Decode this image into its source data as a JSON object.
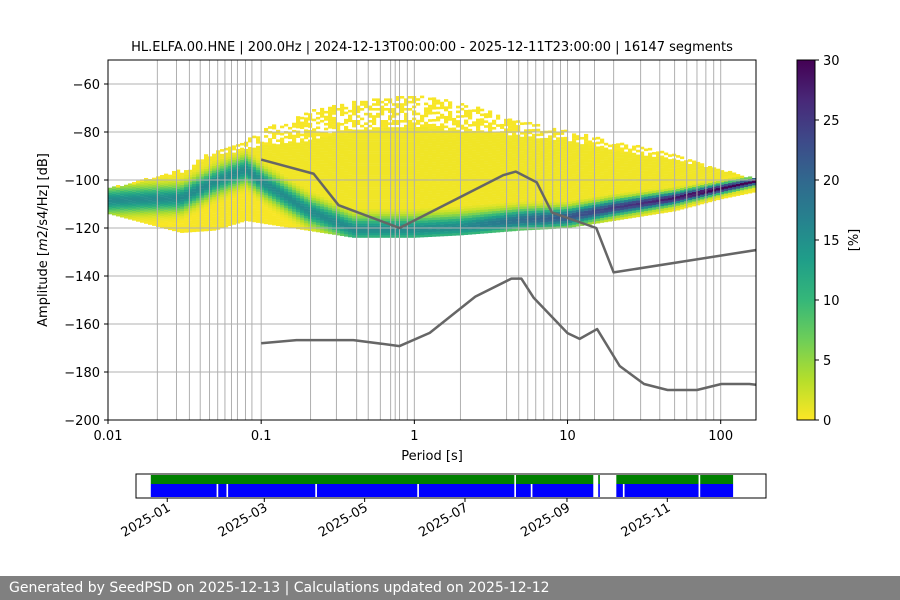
{
  "chart_data": [
    {
      "type": "heatmap",
      "title": "HL.ELFA.00.HNE | 200.0Hz | 2024-12-13T00:00:00 - 2025-12-11T23:00:00 | 16147 segments",
      "xlabel": "Period [s]",
      "ylabel_main": "Amplitude [",
      "ylabel_math": "m",
      "ylabel_units": "2/s4/Hz] [dB]",
      "x_scale": "log",
      "xlim": [
        0.01,
        170
      ],
      "ylim": [
        -200,
        -50
      ],
      "x_ticks": [
        {
          "value": 0.01,
          "label": "0.01"
        },
        {
          "value": 0.1,
          "label": "0.1"
        },
        {
          "value": 1,
          "label": "1"
        },
        {
          "value": 10,
          "label": "10"
        },
        {
          "value": 100,
          "label": "100"
        }
      ],
      "y_ticks": [
        {
          "value": -60,
          "label": "−60"
        },
        {
          "value": -80,
          "label": "−80"
        },
        {
          "value": -100,
          "label": "−100"
        },
        {
          "value": -120,
          "label": "−120"
        },
        {
          "value": -140,
          "label": "−140"
        },
        {
          "value": -160,
          "label": "−160"
        },
        {
          "value": -180,
          "label": "−180"
        },
        {
          "value": -200,
          "label": "−200"
        }
      ],
      "grid": true,
      "vertical_gridlines_periods": [
        0.021,
        0.028,
        0.034,
        0.04,
        0.046,
        0.052,
        0.058,
        0.064,
        0.07,
        0.079,
        0.087,
        0.1,
        0.21,
        0.31,
        0.42,
        0.5,
        0.6,
        0.7,
        0.75,
        0.8,
        0.9,
        1,
        2,
        4,
        4.8,
        5.5,
        6.2,
        7,
        8,
        9,
        10,
        12,
        15,
        20,
        30,
        40,
        50,
        60,
        70,
        80,
        90,
        100
      ],
      "high_noise_model": [
        {
          "x": 0.1,
          "y": -91.5
        },
        {
          "x": 0.22,
          "y": -97.4
        },
        {
          "x": 0.32,
          "y": -110.5
        },
        {
          "x": 0.8,
          "y": -120.0
        },
        {
          "x": 3.8,
          "y": -98.0
        },
        {
          "x": 4.6,
          "y": -96.5
        },
        {
          "x": 6.3,
          "y": -101.0
        },
        {
          "x": 7.9,
          "y": -113.5
        },
        {
          "x": 15.4,
          "y": -120.0
        },
        {
          "x": 20.0,
          "y": -138.5
        },
        {
          "x": 354.8,
          "y": -126.0
        }
      ],
      "low_noise_model": [
        {
          "x": 0.1,
          "y": -168.0
        },
        {
          "x": 0.17,
          "y": -166.7
        },
        {
          "x": 0.4,
          "y": -166.7
        },
        {
          "x": 0.8,
          "y": -169.2
        },
        {
          "x": 1.26,
          "y": -163.7
        },
        {
          "x": 2.5,
          "y": -148.6
        },
        {
          "x": 4.3,
          "y": -141.1
        },
        {
          "x": 5.0,
          "y": -141.1
        },
        {
          "x": 6.0,
          "y": -149.0
        },
        {
          "x": 10.0,
          "y": -163.8
        },
        {
          "x": 12.0,
          "y": -166.2
        },
        {
          "x": 15.6,
          "y": -162.1
        },
        {
          "x": 21.9,
          "y": -177.5
        },
        {
          "x": 31.6,
          "y": -185.0
        },
        {
          "x": 45.0,
          "y": -187.5
        },
        {
          "x": 70.0,
          "y": -187.5
        },
        {
          "x": 101.0,
          "y": -185.0
        },
        {
          "x": 154.0,
          "y": -185.0
        },
        {
          "x": 328.0,
          "y": -187.5
        }
      ],
      "density_band": {
        "description_points_period": [
          0.01,
          0.03,
          0.05,
          0.08,
          0.1,
          0.2,
          0.4,
          1,
          2,
          5,
          10,
          20,
          50,
          100,
          170
        ],
        "mode_db": [
          -109,
          -108,
          -101,
          -96,
          -101,
          -113,
          -121,
          -121,
          -120,
          -117,
          -116,
          -112,
          -108,
          -104,
          -101
        ],
        "lower_db": [
          -114,
          -122,
          -121,
          -117,
          -118,
          -121,
          -124,
          -124,
          -123,
          -121,
          -120,
          -117,
          -113,
          -108,
          -105
        ],
        "upper_db": [
          -104,
          -98,
          -90,
          -88,
          -86,
          -84,
          -80,
          -78,
          -80,
          -82,
          -84,
          -88,
          -92,
          -96,
          -100
        ],
        "sparse_upper_db": [
          -104,
          -96,
          -88,
          -84,
          -80,
          -72,
          -68,
          -65,
          -68,
          -76,
          -80,
          -84,
          -90,
          -96,
          -100
        ]
      },
      "colorbar": {
        "label": "[%]",
        "min": 0,
        "max": 30,
        "ticks": [
          {
            "value": 0,
            "label": "0"
          },
          {
            "value": 5,
            "label": "5"
          },
          {
            "value": 10,
            "label": "10"
          },
          {
            "value": 15,
            "label": "15"
          },
          {
            "value": 20,
            "label": "20"
          },
          {
            "value": 25,
            "label": "25"
          },
          {
            "value": 30,
            "label": "30"
          }
        ],
        "colormap": "viridis_r",
        "stops": [
          "#fde725",
          "#b5de2b",
          "#6ece58",
          "#35b779",
          "#1f9e89",
          "#26828e",
          "#31688e",
          "#3e4989",
          "#482878",
          "#440154"
        ]
      },
      "colors": {
        "noise_model": "#666666",
        "grid": "#b0b0b0"
      }
    },
    {
      "type": "timeline",
      "x_start": "2024-12-13",
      "x_end": "2025-12-31",
      "x_ticks": [
        "2025-01",
        "2025-03",
        "2025-05",
        "2025-07",
        "2025-09",
        "2025-11"
      ],
      "x_tick_dates": [
        "2025-01-01",
        "2025-03-01",
        "2025-05-01",
        "2025-07-01",
        "2025-09-01",
        "2025-11-01"
      ],
      "green_segments": [
        [
          "2024-12-22",
          "2025-07-31"
        ],
        [
          "2025-08-01",
          "2025-09-17"
        ],
        [
          "2025-09-20",
          "2025-09-21"
        ],
        [
          "2025-10-01",
          "2025-11-20"
        ],
        [
          "2025-11-21",
          "2025-12-11"
        ]
      ],
      "blue_segments": [
        [
          "2024-12-22",
          "2025-01-31"
        ],
        [
          "2025-02-01",
          "2025-02-06"
        ],
        [
          "2025-02-07",
          "2025-04-01"
        ],
        [
          "2025-04-02",
          "2025-06-02"
        ],
        [
          "2025-06-03",
          "2025-07-31"
        ],
        [
          "2025-08-01",
          "2025-08-10"
        ],
        [
          "2025-08-11",
          "2025-09-17"
        ],
        [
          "2025-09-20",
          "2025-09-21"
        ],
        [
          "2025-10-01",
          "2025-10-05"
        ],
        [
          "2025-10-06",
          "2025-11-20"
        ],
        [
          "2025-11-21",
          "2025-12-11"
        ]
      ],
      "colors": {
        "green": "#008000",
        "blue": "#0000ff"
      }
    }
  ],
  "footer": {
    "text": "Generated by SeedPSD on 2025-12-13 | Calculations updated on 2025-12-12"
  }
}
